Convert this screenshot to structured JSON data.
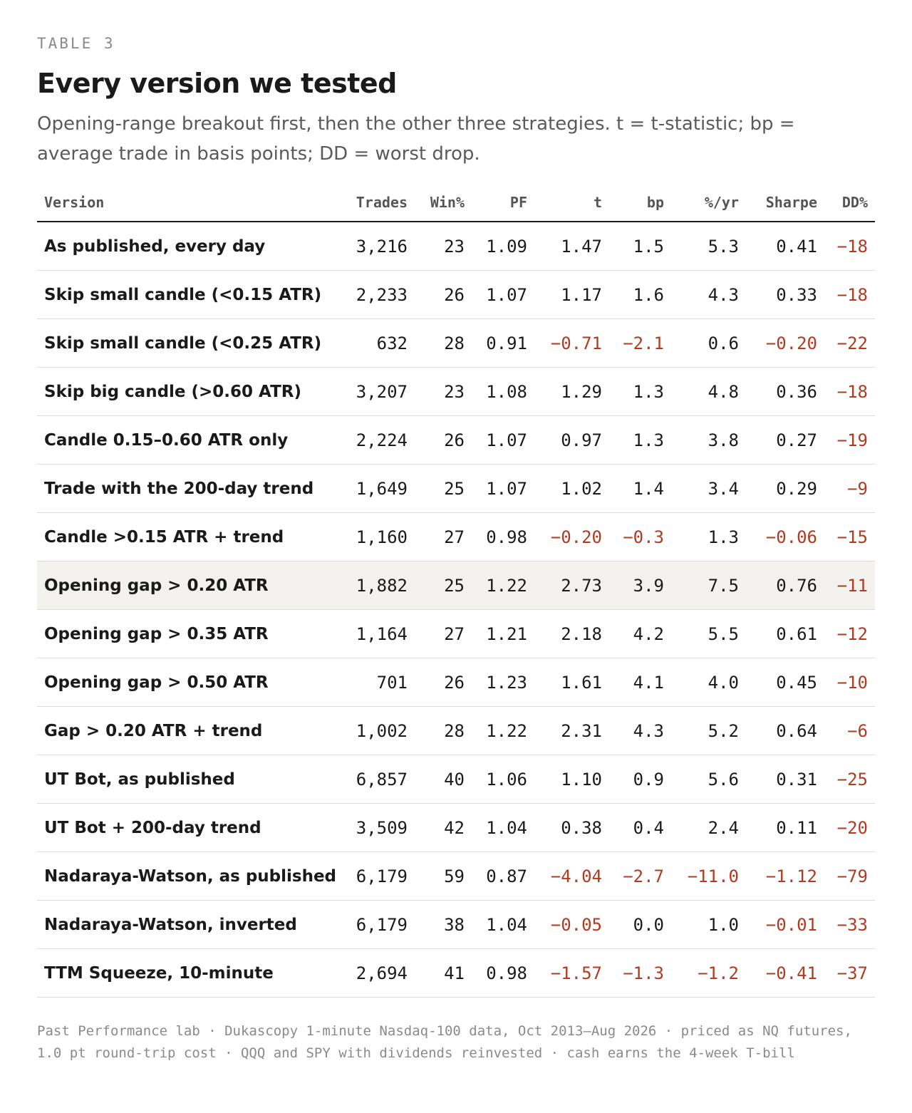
{
  "header": {
    "eyebrow": "TABLE 3",
    "title": "Every version we tested",
    "subtitle": "Opening-range breakout first, then the other three strategies. t = t-statistic; bp = average trade in basis points; DD = worst drop."
  },
  "colors": {
    "negative": "#b23a1e",
    "highlight_row": "#f3f2ef",
    "text": "#1a1a1a",
    "muted": "#8a8a8a"
  },
  "table": {
    "columns": [
      {
        "key": "version",
        "label": "Version"
      },
      {
        "key": "trades",
        "label": "Trades"
      },
      {
        "key": "win",
        "label": "Win%"
      },
      {
        "key": "pf",
        "label": "PF"
      },
      {
        "key": "t",
        "label": "t"
      },
      {
        "key": "bp",
        "label": "bp"
      },
      {
        "key": "pyr",
        "label": "%/yr"
      },
      {
        "key": "sharpe",
        "label": "Sharpe"
      },
      {
        "key": "dd",
        "label": "DD%"
      }
    ],
    "highlighted_row": 7,
    "rows": [
      {
        "version": "As published, every day",
        "trades": "3,216",
        "win": "23",
        "pf": "1.09",
        "t": "1.47",
        "bp": "1.5",
        "pyr": "5.3",
        "sharpe": "0.41",
        "dd": "−18"
      },
      {
        "version": "Skip small candle (<0.15 ATR)",
        "trades": "2,233",
        "win": "26",
        "pf": "1.07",
        "t": "1.17",
        "bp": "1.6",
        "pyr": "4.3",
        "sharpe": "0.33",
        "dd": "−18"
      },
      {
        "version": "Skip small candle (<0.25 ATR)",
        "trades": "632",
        "win": "28",
        "pf": "0.91",
        "t": "−0.71",
        "bp": "−2.1",
        "pyr": "0.6",
        "sharpe": "−0.20",
        "dd": "−22"
      },
      {
        "version": "Skip big candle (>0.60 ATR)",
        "trades": "3,207",
        "win": "23",
        "pf": "1.08",
        "t": "1.29",
        "bp": "1.3",
        "pyr": "4.8",
        "sharpe": "0.36",
        "dd": "−18"
      },
      {
        "version": "Candle 0.15–0.60 ATR only",
        "trades": "2,224",
        "win": "26",
        "pf": "1.07",
        "t": "0.97",
        "bp": "1.3",
        "pyr": "3.8",
        "sharpe": "0.27",
        "dd": "−19"
      },
      {
        "version": "Trade with the 200-day trend",
        "trades": "1,649",
        "win": "25",
        "pf": "1.07",
        "t": "1.02",
        "bp": "1.4",
        "pyr": "3.4",
        "sharpe": "0.29",
        "dd": "−9"
      },
      {
        "version": "Candle >0.15 ATR + trend",
        "trades": "1,160",
        "win": "27",
        "pf": "0.98",
        "t": "−0.20",
        "bp": "−0.3",
        "pyr": "1.3",
        "sharpe": "−0.06",
        "dd": "−15"
      },
      {
        "version": "Opening gap > 0.20 ATR",
        "trades": "1,882",
        "win": "25",
        "pf": "1.22",
        "t": "2.73",
        "bp": "3.9",
        "pyr": "7.5",
        "sharpe": "0.76",
        "dd": "−11"
      },
      {
        "version": "Opening gap > 0.35 ATR",
        "trades": "1,164",
        "win": "27",
        "pf": "1.21",
        "t": "2.18",
        "bp": "4.2",
        "pyr": "5.5",
        "sharpe": "0.61",
        "dd": "−12"
      },
      {
        "version": "Opening gap > 0.50 ATR",
        "trades": "701",
        "win": "26",
        "pf": "1.23",
        "t": "1.61",
        "bp": "4.1",
        "pyr": "4.0",
        "sharpe": "0.45",
        "dd": "−10"
      },
      {
        "version": "Gap > 0.20 ATR + trend",
        "trades": "1,002",
        "win": "28",
        "pf": "1.22",
        "t": "2.31",
        "bp": "4.3",
        "pyr": "5.2",
        "sharpe": "0.64",
        "dd": "−6"
      },
      {
        "version": "UT Bot, as published",
        "trades": "6,857",
        "win": "40",
        "pf": "1.06",
        "t": "1.10",
        "bp": "0.9",
        "pyr": "5.6",
        "sharpe": "0.31",
        "dd": "−25"
      },
      {
        "version": "UT Bot + 200-day trend",
        "trades": "3,509",
        "win": "42",
        "pf": "1.04",
        "t": "0.38",
        "bp": "0.4",
        "pyr": "2.4",
        "sharpe": "0.11",
        "dd": "−20"
      },
      {
        "version": "Nadaraya-Watson, as published",
        "trades": "6,179",
        "win": "59",
        "pf": "0.87",
        "t": "−4.04",
        "bp": "−2.7",
        "pyr": "−11.0",
        "sharpe": "−1.12",
        "dd": "−79"
      },
      {
        "version": "Nadaraya-Watson, inverted",
        "trades": "6,179",
        "win": "38",
        "pf": "1.04",
        "t": "−0.05",
        "bp": "0.0",
        "pyr": "1.0",
        "sharpe": "−0.01",
        "dd": "−33"
      },
      {
        "version": "TTM Squeeze, 10-minute",
        "trades": "2,694",
        "win": "41",
        "pf": "0.98",
        "t": "−1.57",
        "bp": "−1.3",
        "pyr": "−1.2",
        "sharpe": "−0.41",
        "dd": "−37"
      }
    ]
  },
  "footer": {
    "text": "Past Performance lab · Dukascopy 1-minute Nasdaq-100 data, Oct 2013–Aug 2026 · priced as NQ futures, 1.0 pt round-trip cost · QQQ and SPY with dividends reinvested · cash earns the 4-week T-bill"
  }
}
